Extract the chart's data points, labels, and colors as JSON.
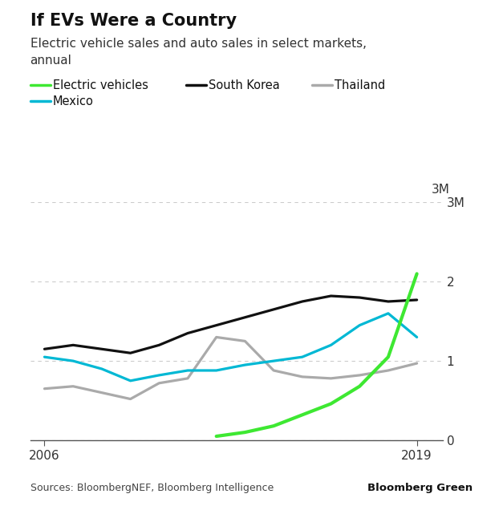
{
  "title": "If EVs Were a Country",
  "subtitle_line1": "Electric vehicle sales and auto sales in select markets,",
  "subtitle_line2": "annual",
  "source": "Sources: BloombergNEF, Bloomberg Intelligence",
  "source_brand": "Bloomberg Green",
  "years": [
    2006,
    2007,
    2008,
    2009,
    2010,
    2011,
    2012,
    2013,
    2014,
    2015,
    2016,
    2017,
    2018,
    2019
  ],
  "ev_years": [
    2012,
    2013,
    2014,
    2015,
    2016,
    2017,
    2018,
    2019
  ],
  "ev_data": [
    0.05,
    0.1,
    0.18,
    0.32,
    0.46,
    0.68,
    1.05,
    2.1
  ],
  "south_korea": [
    1.15,
    1.2,
    1.15,
    1.1,
    1.2,
    1.35,
    1.45,
    1.55,
    1.65,
    1.75,
    1.82,
    1.8,
    1.75,
    1.77
  ],
  "thailand": [
    0.65,
    0.68,
    0.6,
    0.52,
    0.72,
    0.78,
    1.3,
    1.25,
    0.88,
    0.8,
    0.78,
    0.82,
    0.88,
    0.97
  ],
  "mexico": [
    1.05,
    1.0,
    0.9,
    0.75,
    0.82,
    0.88,
    0.88,
    0.95,
    1.0,
    1.05,
    1.2,
    1.45,
    1.6,
    1.3
  ],
  "ev_color": "#3EE832",
  "south_korea_color": "#111111",
  "thailand_color": "#AAAAAA",
  "mexico_color": "#00B8D4",
  "background_color": "#FFFFFF",
  "ylim": [
    0,
    3.0
  ],
  "yticks": [
    0,
    1,
    2,
    3
  ],
  "ytick_labels": [
    "0",
    "1",
    "2",
    "3M"
  ],
  "grid_color": "#CCCCCC",
  "line_width": 2.3
}
